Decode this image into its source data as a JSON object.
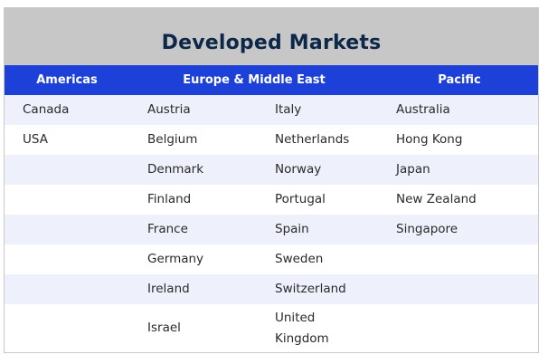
{
  "title": "Developed Markets",
  "headers": {
    "americas": "Americas",
    "europe": "Europe & Middle East",
    "pacific": "Pacific"
  },
  "rows": [
    [
      "Canada",
      "Austria",
      "Italy",
      "Australia"
    ],
    [
      "USA",
      "Belgium",
      "Netherlands",
      "Hong Kong"
    ],
    [
      "",
      "Denmark",
      "Norway",
      "Japan"
    ],
    [
      "",
      "Finland",
      "Portugal",
      "New Zealand"
    ],
    [
      "",
      "France",
      "Spain",
      "Singapore"
    ],
    [
      "",
      "Germany",
      "Sweden",
      ""
    ],
    [
      "",
      "Ireland",
      "Switzerland",
      ""
    ],
    [
      "",
      "Israel",
      "United Kingdom",
      ""
    ]
  ]
}
